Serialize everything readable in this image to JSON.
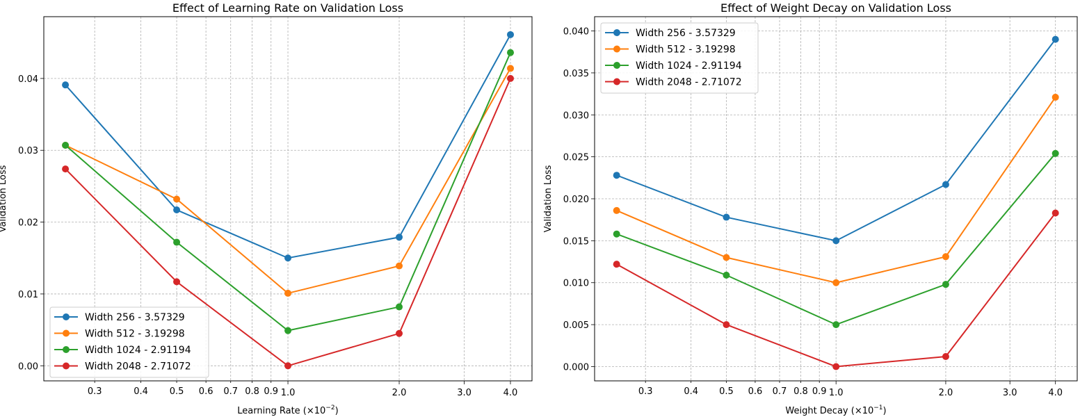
{
  "chart_data": [
    {
      "type": "line",
      "title": "Effect of Learning Rate on Validation Loss",
      "xlabel": "Learning Rate (×10",
      "xlabel_exp": "−2",
      "xlabel_close": ")",
      "ylabel": "Validation Loss",
      "x_scale": "log",
      "xlim": [
        0.2185,
        4.575
      ],
      "ylim": [
        -0.0021,
        0.0486
      ],
      "x": [
        0.25,
        0.5,
        1.0,
        2.0,
        4.0
      ],
      "x_major_ticks": [
        {
          "v": 1.0,
          "label": "1.0"
        },
        {
          "v": 2.0,
          "label": "2.0"
        },
        {
          "v": 3.0,
          "label": "3.0"
        },
        {
          "v": 4.0,
          "label": "4.0"
        }
      ],
      "x_minor_ticks": [
        {
          "v": 0.3,
          "label": "0.3"
        },
        {
          "v": 0.4,
          "label": "0.4"
        },
        {
          "v": 0.5,
          "label": "0.5"
        },
        {
          "v": 0.6,
          "label": "0.6"
        },
        {
          "v": 0.7,
          "label": "0.7"
        },
        {
          "v": 0.8,
          "label": "0.8"
        },
        {
          "v": 0.9,
          "label": "0.9"
        }
      ],
      "y_ticks": [
        {
          "v": 0,
          "label": "0.00"
        },
        {
          "v": 0.01,
          "label": "0.01"
        },
        {
          "v": 0.02,
          "label": "0.02"
        },
        {
          "v": 0.03,
          "label": "0.03"
        },
        {
          "v": 0.04,
          "label": "0.04"
        }
      ],
      "grid": true,
      "legend_position": "lower-left",
      "series": [
        {
          "name": "Width 256 - 3.57329",
          "color": "#1f77b4",
          "values": [
            0.0391,
            0.0217,
            0.015,
            0.0179,
            0.0461
          ]
        },
        {
          "name": "Width 512 - 3.19298",
          "color": "#ff7f0e",
          "values": [
            0.0307,
            0.0232,
            0.0101,
            0.0139,
            0.0414
          ]
        },
        {
          "name": "Width 1024 - 2.91194",
          "color": "#2ca02c",
          "values": [
            0.0307,
            0.0172,
            0.0049,
            0.0082,
            0.0436
          ]
        },
        {
          "name": "Width 2048 - 2.71072",
          "color": "#d62728",
          "values": [
            0.0274,
            0.0117,
            0.0,
            0.0045,
            0.04
          ]
        }
      ]
    },
    {
      "type": "line",
      "title": "Effect of Weight Decay on Validation Loss",
      "xlabel": "Weight Decay (×10",
      "xlabel_exp": "−1",
      "xlabel_close": ")",
      "ylabel": "Validation Loss",
      "x_scale": "log",
      "xlim": [
        0.2175,
        4.59
      ],
      "ylim": [
        -0.0017,
        0.0417
      ],
      "x": [
        0.25,
        0.5,
        1.0,
        2.0,
        4.0
      ],
      "x_major_ticks": [
        {
          "v": 1.0,
          "label": "1.0"
        },
        {
          "v": 2.0,
          "label": "2.0"
        },
        {
          "v": 3.0,
          "label": "3.0"
        },
        {
          "v": 4.0,
          "label": "4.0"
        }
      ],
      "x_minor_ticks": [
        {
          "v": 0.3,
          "label": "0.3"
        },
        {
          "v": 0.4,
          "label": "0.4"
        },
        {
          "v": 0.5,
          "label": "0.5"
        },
        {
          "v": 0.6,
          "label": "0.6"
        },
        {
          "v": 0.7,
          "label": "0.7"
        },
        {
          "v": 0.8,
          "label": "0.8"
        },
        {
          "v": 0.9,
          "label": "0.9"
        }
      ],
      "y_ticks": [
        {
          "v": 0,
          "label": "0.000"
        },
        {
          "v": 0.005,
          "label": "0.005"
        },
        {
          "v": 0.01,
          "label": "0.010"
        },
        {
          "v": 0.015,
          "label": "0.015"
        },
        {
          "v": 0.02,
          "label": "0.020"
        },
        {
          "v": 0.025,
          "label": "0.025"
        },
        {
          "v": 0.03,
          "label": "0.030"
        },
        {
          "v": 0.035,
          "label": "0.035"
        },
        {
          "v": 0.04,
          "label": "0.040"
        }
      ],
      "grid": true,
      "legend_position": "upper-left",
      "series": [
        {
          "name": "Width 256 - 3.57329",
          "color": "#1f77b4",
          "values": [
            0.0228,
            0.0178,
            0.015,
            0.0217,
            0.039
          ]
        },
        {
          "name": "Width 512 - 3.19298",
          "color": "#ff7f0e",
          "values": [
            0.0186,
            0.013,
            0.01,
            0.0131,
            0.0321
          ]
        },
        {
          "name": "Width 1024 - 2.91194",
          "color": "#2ca02c",
          "values": [
            0.0158,
            0.0109,
            0.005,
            0.0098,
            0.0254
          ]
        },
        {
          "name": "Width 2048 - 2.71072",
          "color": "#d62728",
          "values": [
            0.0122,
            0.005,
            0.0,
            0.0012,
            0.0183
          ]
        }
      ]
    }
  ]
}
